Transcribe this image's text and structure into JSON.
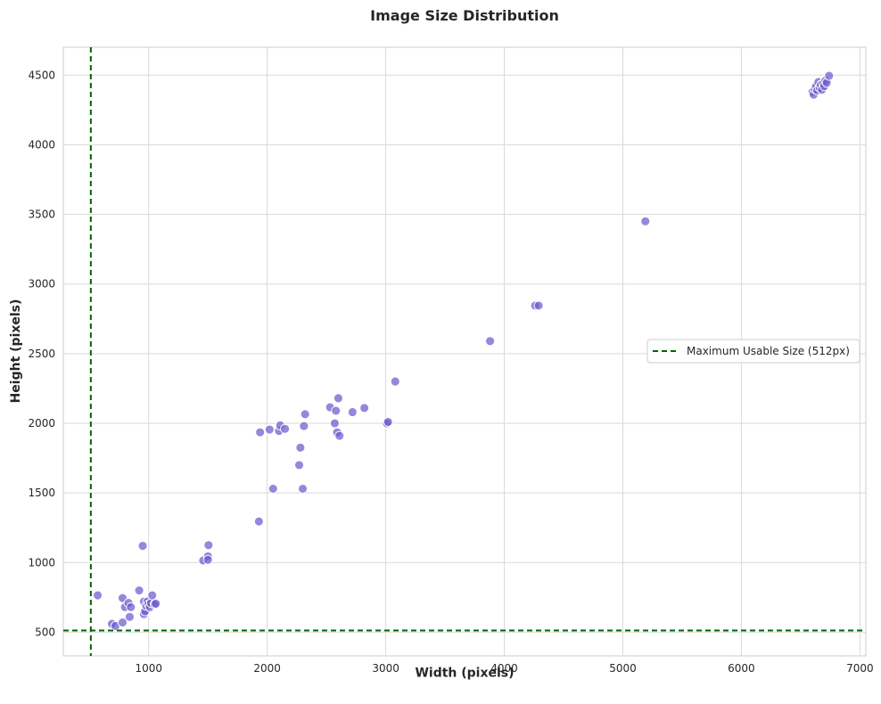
{
  "chart_data": {
    "type": "scatter",
    "title": "Image Size Distribution",
    "xlabel": "Width (pixels)",
    "ylabel": "Height (pixels)",
    "xlim": [
      280,
      7050
    ],
    "ylim": [
      330,
      4700
    ],
    "xticks": [
      1000,
      2000,
      3000,
      4000,
      5000,
      6000,
      7000
    ],
    "yticks": [
      500,
      1000,
      1500,
      2000,
      2500,
      3000,
      3500,
      4000,
      4500
    ],
    "grid": true,
    "legend_position": "right",
    "colors": {
      "points": "#6a5acd",
      "point_edge": "#ffffff",
      "threshold_line": "#006400",
      "grid": "#d9d9d9"
    },
    "threshold": {
      "value": 512,
      "label": "Maximum Usable Size (512px)"
    },
    "points": [
      {
        "x": 570,
        "y": 765
      },
      {
        "x": 690,
        "y": 560
      },
      {
        "x": 720,
        "y": 545
      },
      {
        "x": 780,
        "y": 570
      },
      {
        "x": 780,
        "y": 745
      },
      {
        "x": 800,
        "y": 680
      },
      {
        "x": 830,
        "y": 710
      },
      {
        "x": 840,
        "y": 610
      },
      {
        "x": 850,
        "y": 680
      },
      {
        "x": 920,
        "y": 800
      },
      {
        "x": 950,
        "y": 1120
      },
      {
        "x": 960,
        "y": 630
      },
      {
        "x": 960,
        "y": 720
      },
      {
        "x": 970,
        "y": 650
      },
      {
        "x": 980,
        "y": 690
      },
      {
        "x": 990,
        "y": 720
      },
      {
        "x": 1000,
        "y": 700
      },
      {
        "x": 1010,
        "y": 680
      },
      {
        "x": 1020,
        "y": 710
      },
      {
        "x": 1030,
        "y": 765
      },
      {
        "x": 1050,
        "y": 700
      },
      {
        "x": 1060,
        "y": 705
      },
      {
        "x": 1460,
        "y": 1015
      },
      {
        "x": 1500,
        "y": 1045
      },
      {
        "x": 1500,
        "y": 1020
      },
      {
        "x": 1505,
        "y": 1125
      },
      {
        "x": 1930,
        "y": 1295
      },
      {
        "x": 1940,
        "y": 1935
      },
      {
        "x": 2020,
        "y": 1955
      },
      {
        "x": 2050,
        "y": 1530
      },
      {
        "x": 2100,
        "y": 1945
      },
      {
        "x": 2110,
        "y": 1985
      },
      {
        "x": 2150,
        "y": 1960
      },
      {
        "x": 2270,
        "y": 1700
      },
      {
        "x": 2280,
        "y": 1825
      },
      {
        "x": 2300,
        "y": 1530
      },
      {
        "x": 2310,
        "y": 1980
      },
      {
        "x": 2320,
        "y": 2065
      },
      {
        "x": 2530,
        "y": 2115
      },
      {
        "x": 2570,
        "y": 2000
      },
      {
        "x": 2580,
        "y": 2090
      },
      {
        "x": 2590,
        "y": 1935
      },
      {
        "x": 2600,
        "y": 2180
      },
      {
        "x": 2610,
        "y": 1910
      },
      {
        "x": 2720,
        "y": 2080
      },
      {
        "x": 2820,
        "y": 2110
      },
      {
        "x": 3010,
        "y": 2000
      },
      {
        "x": 3020,
        "y": 2010
      },
      {
        "x": 3080,
        "y": 2300
      },
      {
        "x": 3880,
        "y": 2590
      },
      {
        "x": 4260,
        "y": 2845
      },
      {
        "x": 4290,
        "y": 2845
      },
      {
        "x": 5190,
        "y": 3450
      },
      {
        "x": 6600,
        "y": 4380
      },
      {
        "x": 6610,
        "y": 4360
      },
      {
        "x": 6620,
        "y": 4400
      },
      {
        "x": 6630,
        "y": 4420
      },
      {
        "x": 6640,
        "y": 4390
      },
      {
        "x": 6650,
        "y": 4450
      },
      {
        "x": 6660,
        "y": 4410
      },
      {
        "x": 6670,
        "y": 4430
      },
      {
        "x": 6680,
        "y": 4395
      },
      {
        "x": 6690,
        "y": 4440
      },
      {
        "x": 6700,
        "y": 4420
      },
      {
        "x": 6710,
        "y": 4460
      },
      {
        "x": 6720,
        "y": 4445
      },
      {
        "x": 6740,
        "y": 4495
      }
    ]
  }
}
